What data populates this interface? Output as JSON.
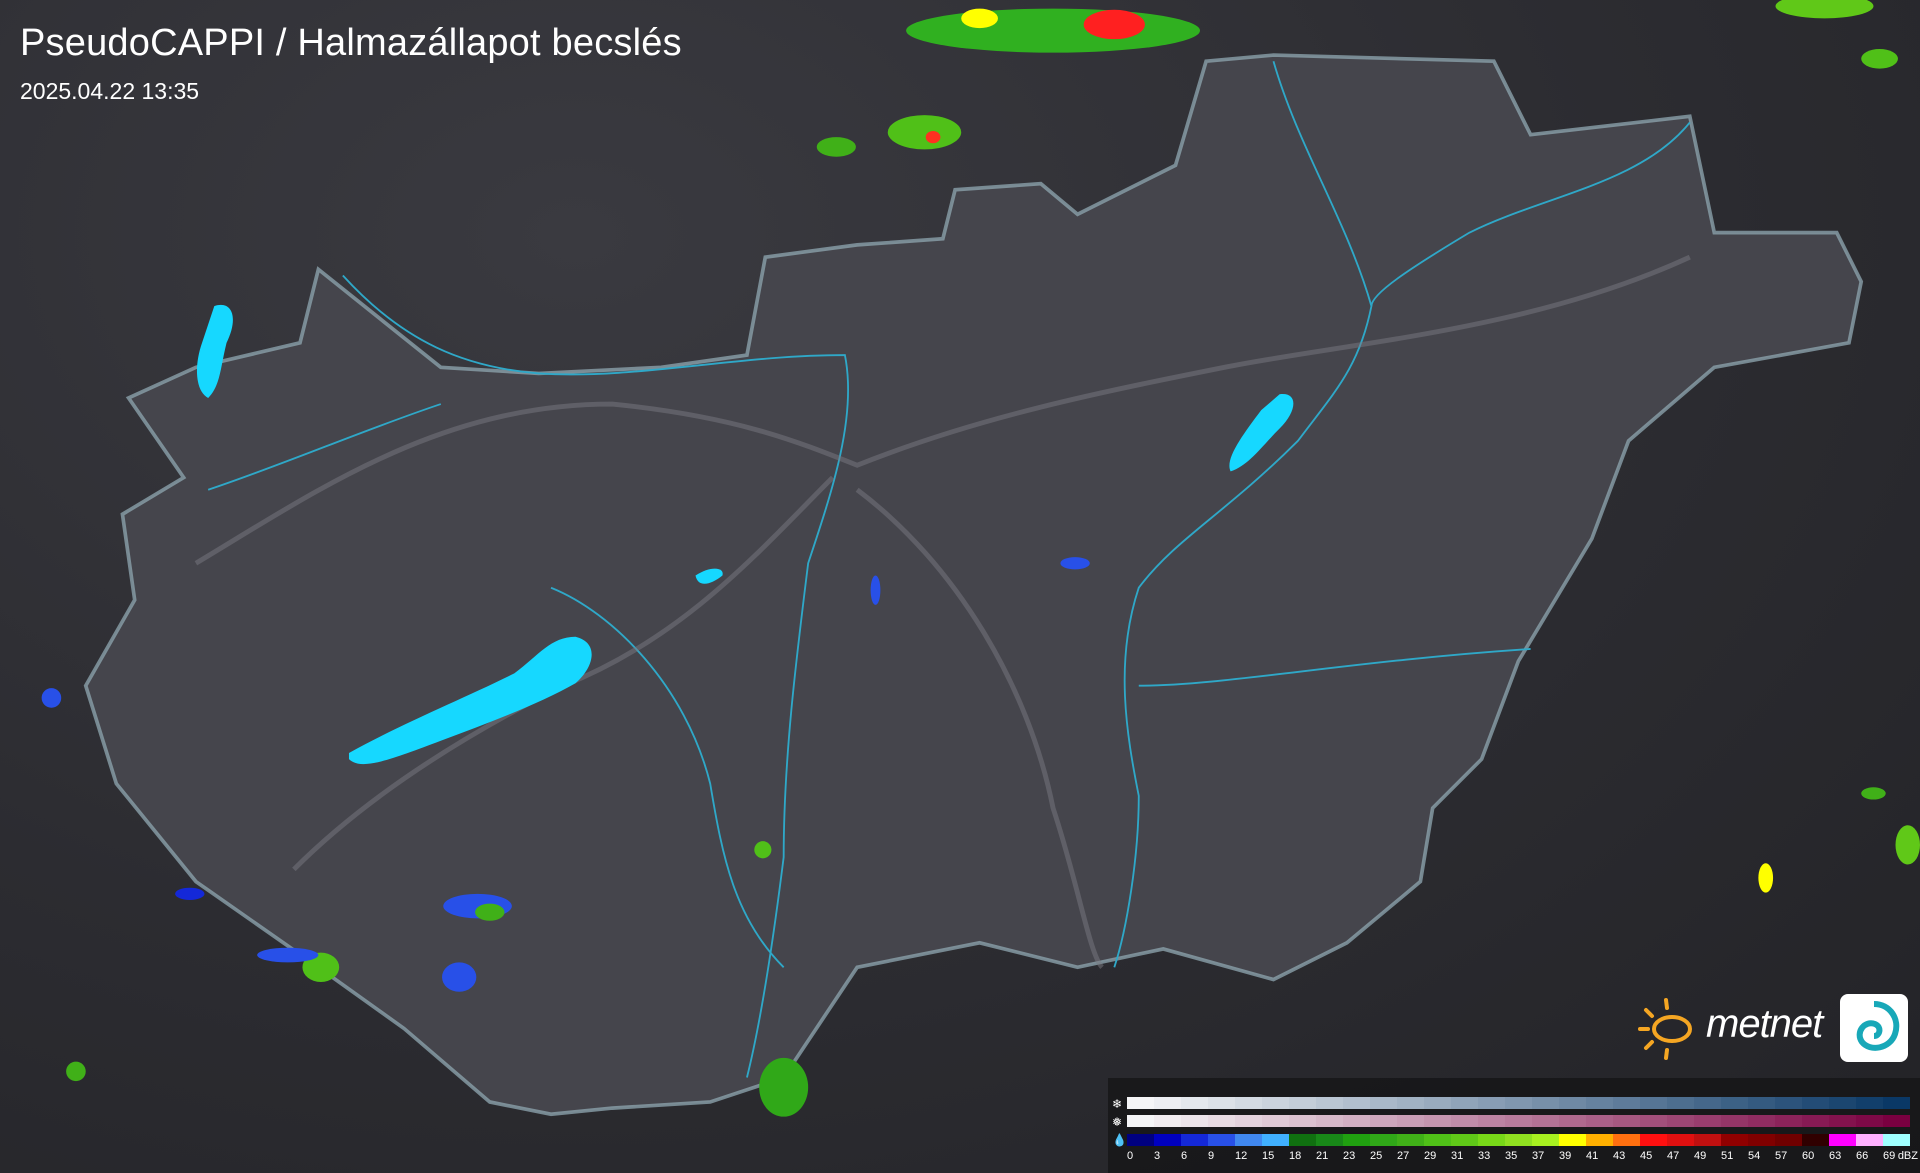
{
  "header": {
    "title": "PseudoCAPPI  / Halmazállapot becslés",
    "datetime": "2025.04.22 13:35"
  },
  "legend": {
    "icons": [
      "snowflake-icon",
      "sleet-icon",
      "raindrop-icon"
    ],
    "unit": "dBZ",
    "labels": [
      "0",
      "3",
      "6",
      "9",
      "12",
      "15",
      "18",
      "21",
      "23",
      "25",
      "27",
      "29",
      "31",
      "33",
      "35",
      "37",
      "39",
      "41",
      "43",
      "45",
      "47",
      "49",
      "51",
      "54",
      "57",
      "60",
      "63",
      "66",
      "69"
    ],
    "snow_colors": {
      "from": "#f5f5f7",
      "to": "#0a3866"
    },
    "mixed_colors": {
      "from": "#f5f5f7",
      "to": "#7a0040"
    },
    "rain_colors": [
      "#000080",
      "#0000c0",
      "#1428d8",
      "#2850e8",
      "#4088f0",
      "#40b0ff",
      "#107010",
      "#188818",
      "#20a010",
      "#30a818",
      "#40b018",
      "#50c018",
      "#60c818",
      "#78d818",
      "#90e020",
      "#a8f020",
      "#ffff00",
      "#ffb000",
      "#ff7010",
      "#ff1010",
      "#e01010",
      "#c01010",
      "#900000",
      "#800000",
      "#700000",
      "#300000",
      "#ff00ff",
      "#ffb0ff",
      "#a0ffff"
    ]
  },
  "logo": {
    "text": "metnet",
    "sun_color": "#f5a623"
  },
  "map": {
    "border_color": "#8aa0aa",
    "country_fill": "#44444b",
    "lake_color": "#16d8ff",
    "river_color": "#2fa8c8"
  }
}
